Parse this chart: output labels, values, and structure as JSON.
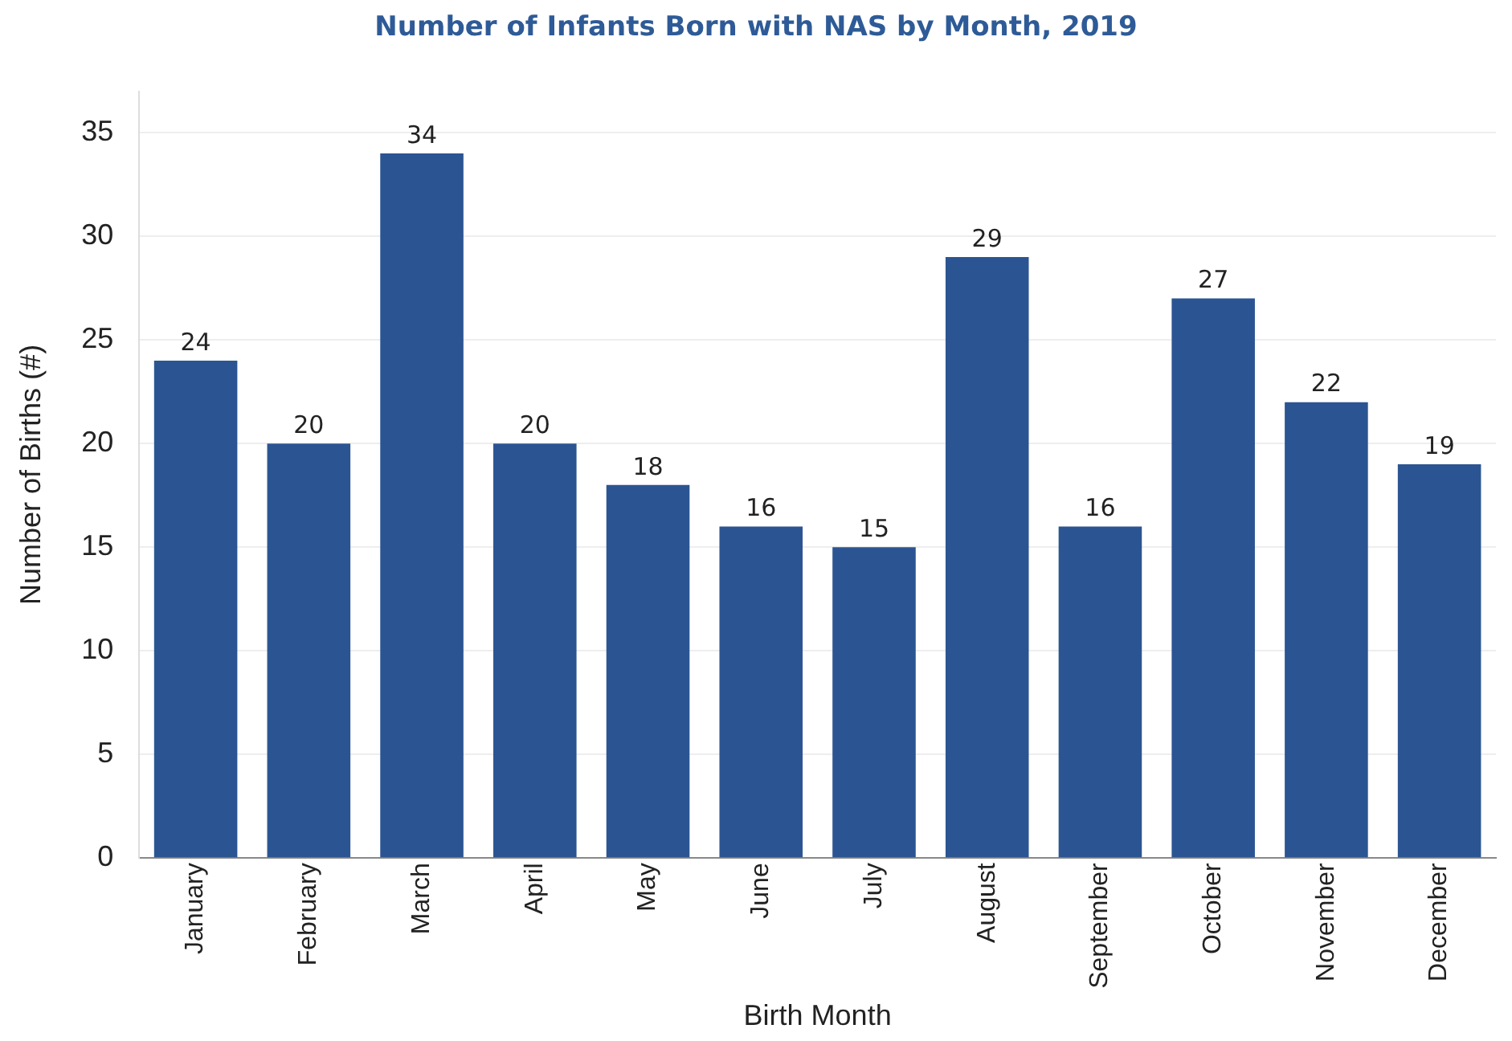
{
  "chart_data": {
    "type": "bar",
    "title": "Number of Infants Born with NAS by Month, 2019",
    "xlabel": "Birth Month",
    "ylabel": "Number of Births (#)",
    "categories": [
      "January",
      "February",
      "March",
      "April",
      "May",
      "June",
      "July",
      "August",
      "September",
      "October",
      "November",
      "December"
    ],
    "values": [
      24,
      20,
      34,
      20,
      18,
      16,
      15,
      29,
      16,
      27,
      22,
      19
    ],
    "color": "#2b5592",
    "ylim": [
      0,
      37
    ],
    "yticks": [
      0,
      5,
      10,
      15,
      20,
      25,
      30,
      35
    ],
    "grid": "y",
    "data_labels": true
  }
}
